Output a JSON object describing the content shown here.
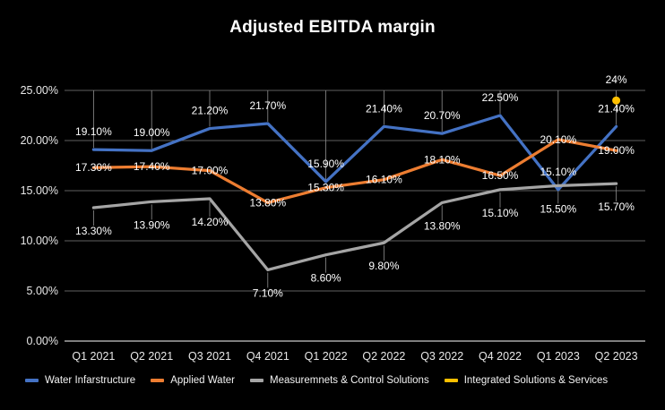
{
  "title": "Adjusted EBITDA margin",
  "chart_data": {
    "type": "line",
    "title": "Adjusted EBITDA margin",
    "categories": [
      "Q1 2021",
      "Q2 2021",
      "Q3 2021",
      "Q4 2021",
      "Q1 2022",
      "Q2 2022",
      "Q3 2022",
      "Q4 2022",
      "Q1 2023",
      "Q2 2023"
    ],
    "series": [
      {
        "name": "Water Infarstructure",
        "color": "#4472C4",
        "marker": "line",
        "values": [
          19.1,
          19.0,
          21.2,
          21.7,
          15.9,
          21.4,
          20.7,
          22.5,
          15.1,
          21.4
        ],
        "labels": [
          "19.10%",
          "19.00%",
          "21.20%",
          "21.70%",
          "15.90%",
          "21.40%",
          "20.70%",
          "22.50%",
          "15.10%",
          "21.40%"
        ]
      },
      {
        "name": "Applied Water",
        "color": "#ED7D31",
        "marker": "line",
        "values": [
          17.3,
          17.4,
          17.0,
          13.8,
          15.3,
          16.1,
          18.1,
          16.5,
          20.1,
          19.0
        ],
        "labels": [
          "17.30%",
          "17.40%",
          "17.00%",
          "13.80%",
          "15.30%",
          "16.10%",
          "18.10%",
          "16.50%",
          "20.10%",
          "19.00%"
        ]
      },
      {
        "name": "Measuremnets & Control Solutions",
        "color": "#A5A5A5",
        "marker": "line",
        "values": [
          13.3,
          13.9,
          14.2,
          7.1,
          8.6,
          9.8,
          13.8,
          15.1,
          15.5,
          15.7
        ],
        "labels": [
          "13.30%",
          "13.90%",
          "14.20%",
          "7.10%",
          "8.60%",
          "9.80%",
          "13.80%",
          "15.10%",
          "15.50%",
          "15.70%"
        ]
      },
      {
        "name": "Integrated Solutions & Services",
        "color": "#FFC000",
        "marker": "point",
        "values": [
          null,
          null,
          null,
          null,
          null,
          null,
          null,
          null,
          null,
          24
        ],
        "labels": [
          null,
          null,
          null,
          null,
          null,
          null,
          null,
          null,
          null,
          "24%"
        ]
      }
    ],
    "y_ticks": [
      "0.00%",
      "5.00%",
      "10.00%",
      "15.00%",
      "20.00%",
      "25.00%"
    ],
    "y_tick_values": [
      0,
      5,
      10,
      15,
      20,
      25
    ],
    "ylim": [
      0,
      25
    ],
    "grid": true,
    "legend_position": "bottom",
    "background_color": "#000000",
    "text_color": "#ffffff"
  }
}
